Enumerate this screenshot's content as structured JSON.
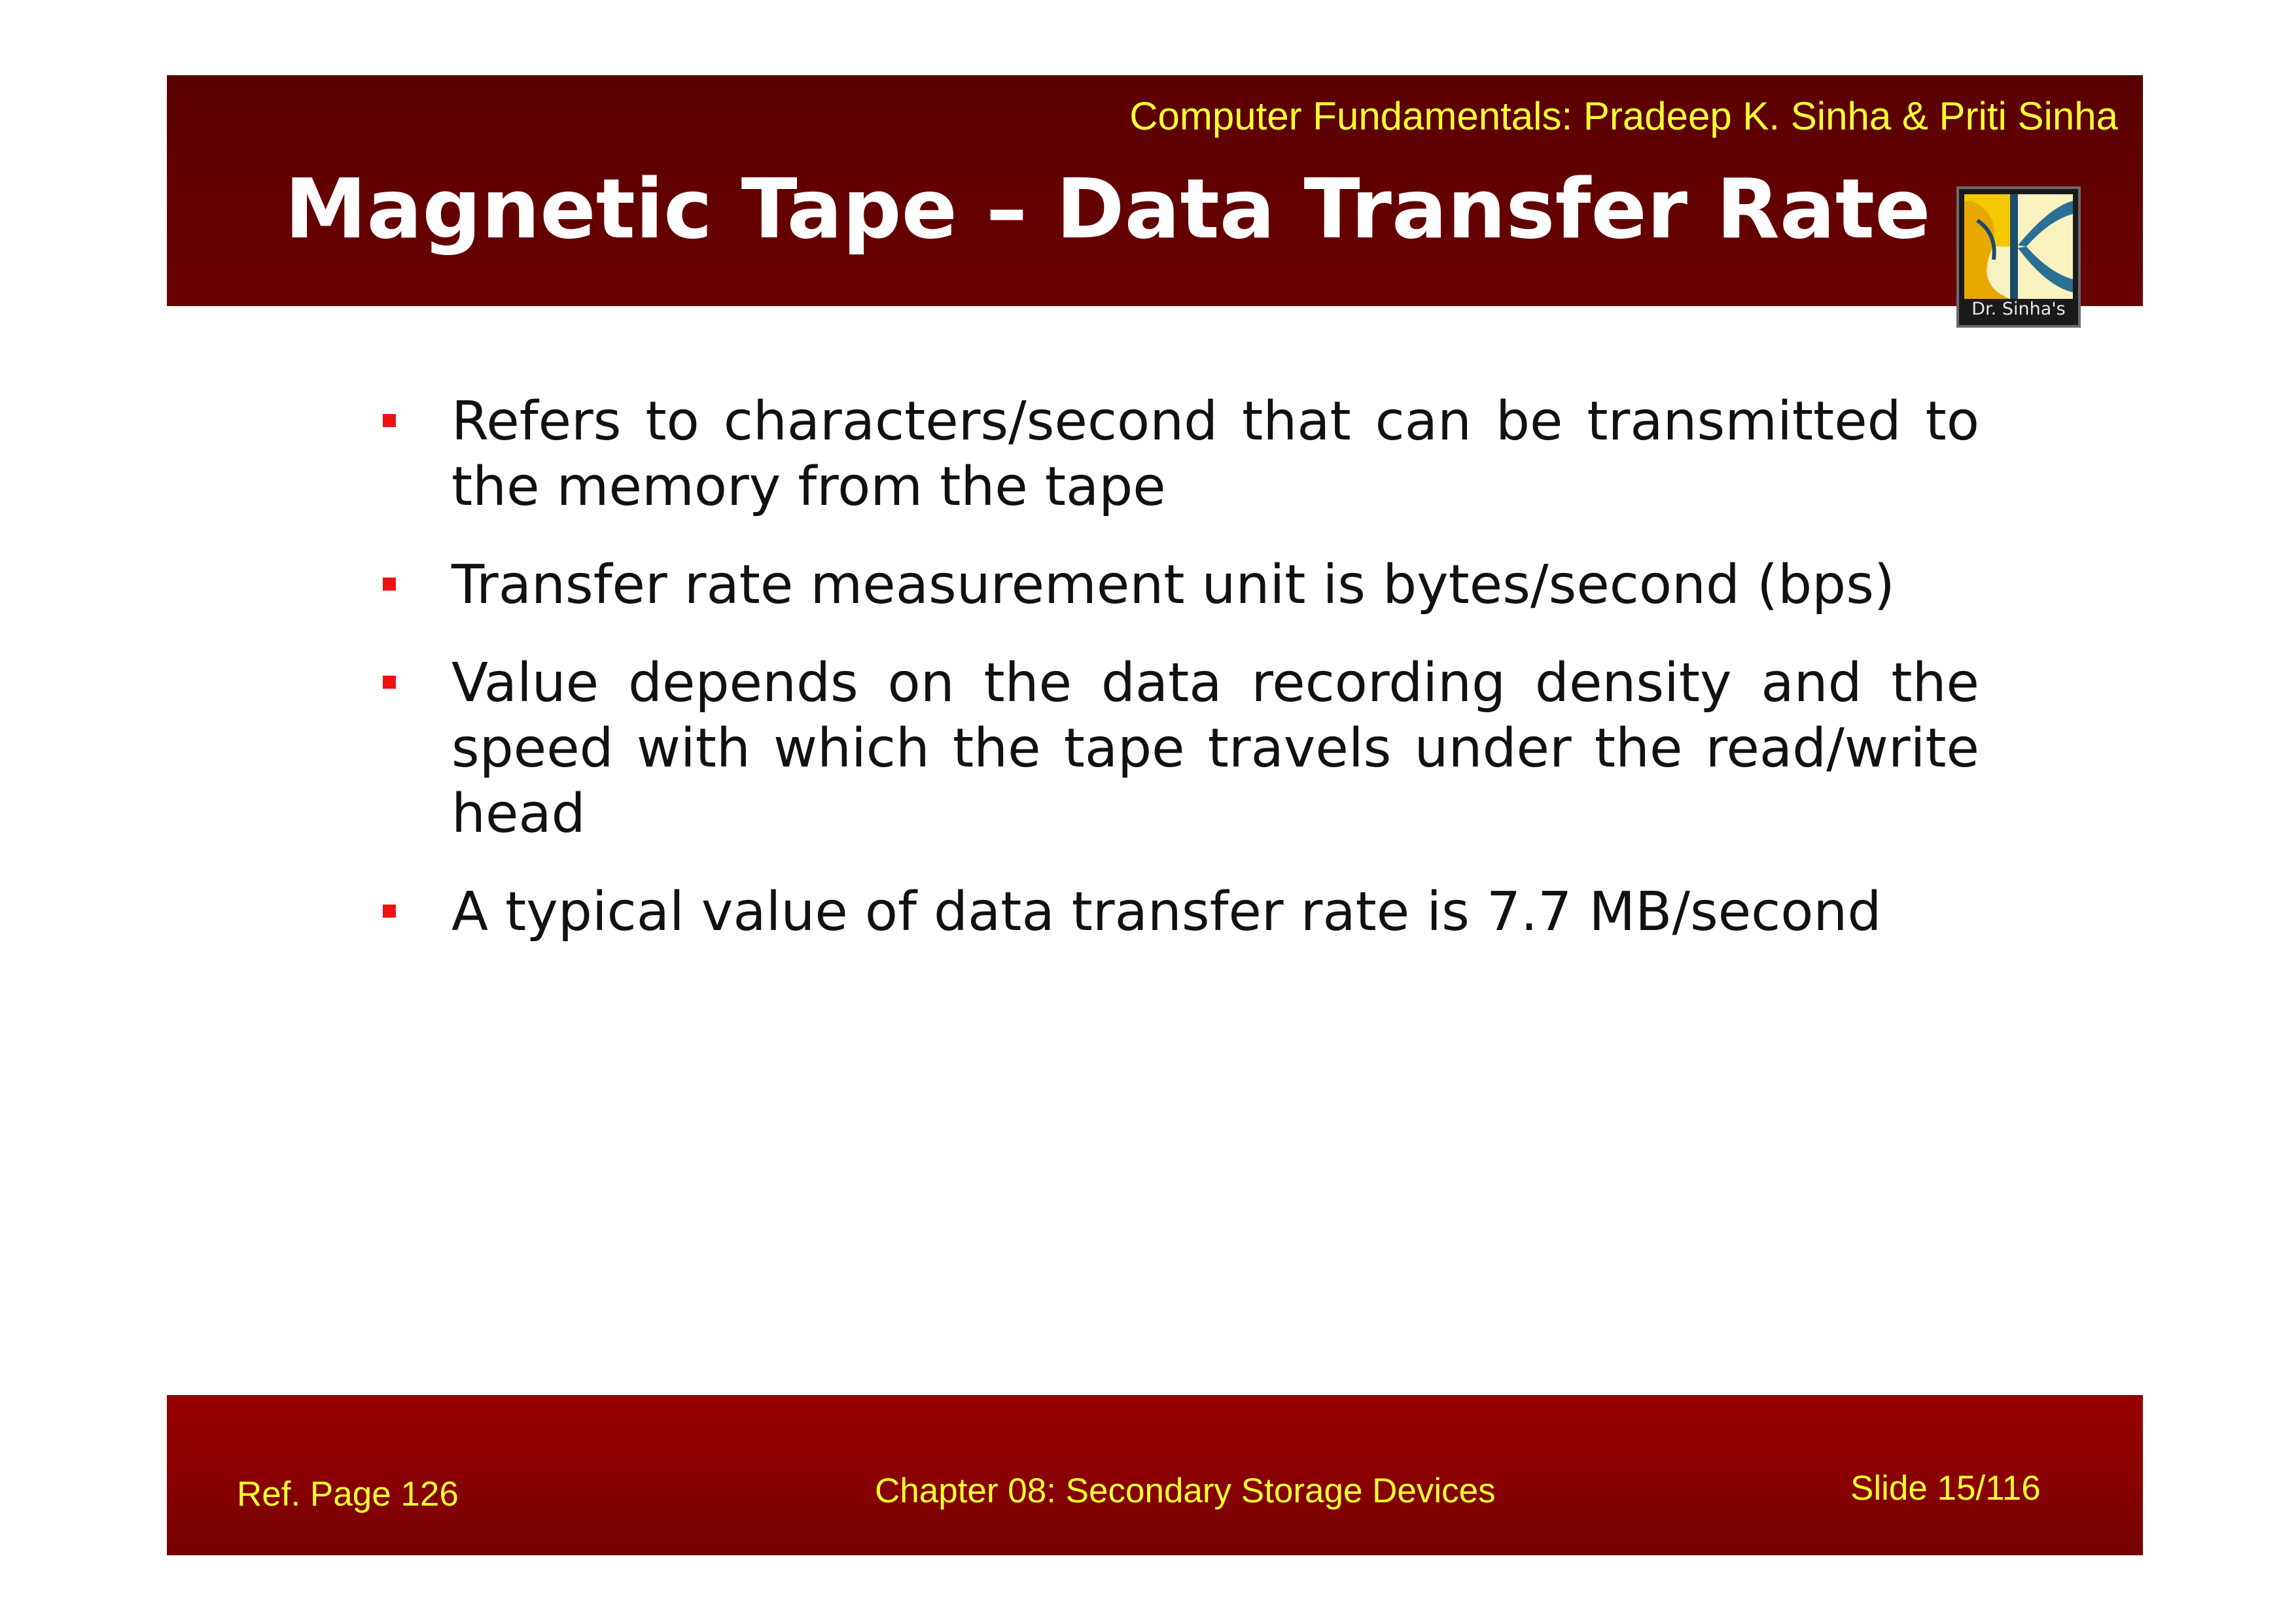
{
  "header": {
    "credit": "Computer Fundamentals: Pradeep K. Sinha & Priti Sinha",
    "title": "Magnetic Tape – Data Transfer Rate"
  },
  "logo": {
    "caption": "Dr. Sinha's"
  },
  "bullets": [
    "Refers to characters/second that can be transmitted to the memory from the tape",
    "Transfer rate measurement unit is bytes/second (bps)",
    "Value depends on the data recording density and the speed with which the tape travels under the read/write head",
    "A typical value of data transfer rate is 7.7 MB/second"
  ],
  "footer": {
    "ref_page": "Ref. Page  126",
    "chapter": "Chapter 08: Secondary Storage Devices",
    "slide": "Slide 15/116"
  },
  "colors": {
    "header_bg": "#600000",
    "footer_bg": "#8a0000",
    "footer_text": "#ffff33",
    "bullet_marker": "#ee1111"
  }
}
